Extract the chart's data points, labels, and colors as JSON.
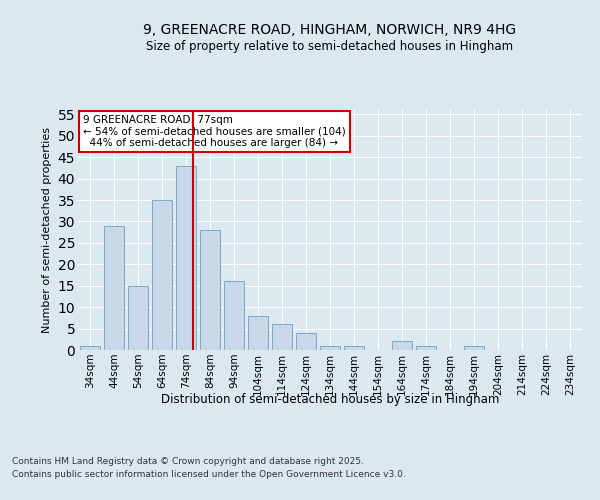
{
  "title_line1": "9, GREENACRE ROAD, HINGHAM, NORWICH, NR9 4HG",
  "title_line2": "Size of property relative to semi-detached houses in Hingham",
  "xlabel": "Distribution of semi-detached houses by size in Hingham",
  "ylabel": "Number of semi-detached properties",
  "bin_labels": [
    "34sqm",
    "44sqm",
    "54sqm",
    "64sqm",
    "74sqm",
    "84sqm",
    "94sqm",
    "104sqm",
    "114sqm",
    "124sqm",
    "134sqm",
    "144sqm",
    "154sqm",
    "164sqm",
    "174sqm",
    "184sqm",
    "194sqm",
    "204sqm",
    "214sqm",
    "224sqm",
    "234sqm"
  ],
  "values": [
    1,
    29,
    15,
    35,
    43,
    28,
    16,
    8,
    6,
    4,
    1,
    1,
    0,
    2,
    1,
    0,
    1,
    0,
    0,
    0,
    0
  ],
  "bar_color": "#c8d8e8",
  "bar_edge_color": "#7aaac8",
  "red_line_color": "#cc0000",
  "annotation_text": "9 GREENACRE ROAD: 77sqm\n← 54% of semi-detached houses are smaller (104)\n  44% of semi-detached houses are larger (84) →",
  "annotation_box_color": "#ffffff",
  "annotation_box_edge": "#cc0000",
  "ylim": [
    0,
    56
  ],
  "yticks": [
    0,
    5,
    10,
    15,
    20,
    25,
    30,
    35,
    40,
    45,
    50,
    55
  ],
  "footer_line1": "Contains HM Land Registry data © Crown copyright and database right 2025.",
  "footer_line2": "Contains public sector information licensed under the Open Government Licence v3.0.",
  "bg_color": "#dce8f0",
  "plot_bg_color": "#dce8f0"
}
